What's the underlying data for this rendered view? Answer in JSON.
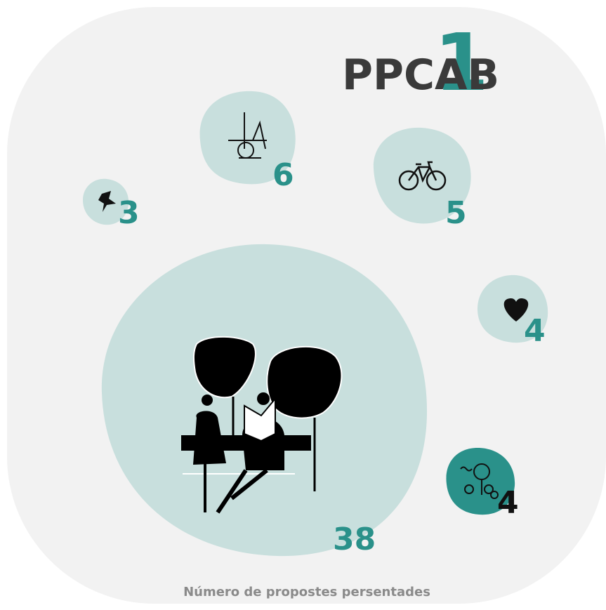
{
  "title": "PPCAB",
  "title_number": "1",
  "bubbles": [
    {
      "value": 6
    },
    {
      "value": 5
    },
    {
      "value": 3
    },
    {
      "value": 4
    },
    {
      "value": 4
    },
    {
      "value": 38
    }
  ],
  "caption": "Número de propostes persentades"
}
